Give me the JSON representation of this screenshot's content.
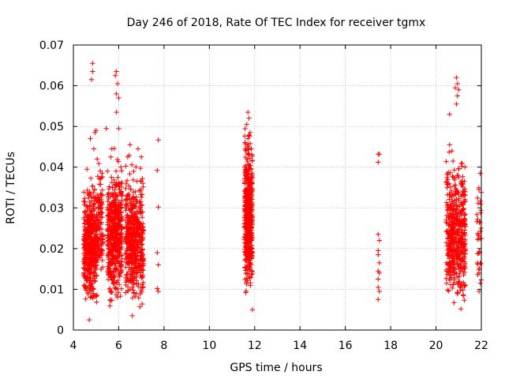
{
  "chart_data": {
    "type": "scatter",
    "title": "Day 246 of 2018, Rate Of TEC Index for receiver tgmx",
    "xlabel": "GPS time / hours",
    "ylabel": "ROTI / TECUs",
    "xlim": [
      4,
      22
    ],
    "ylim": [
      0,
      0.07
    ],
    "x_ticks": [
      4,
      6,
      8,
      10,
      12,
      14,
      16,
      18,
      20,
      22
    ],
    "y_ticks": [
      0,
      0.01,
      0.02,
      0.03,
      0.04,
      0.05,
      0.06,
      0.07
    ],
    "x_tick_labels": [
      "4",
      "6",
      "8",
      "10",
      "12",
      "14",
      "16",
      "18",
      "20",
      "22"
    ],
    "y_tick_labels": [
      "0",
      "0.01",
      "0.02",
      "0.03",
      "0.04",
      "0.05",
      "0.06",
      "0.07"
    ],
    "grid": true,
    "marker": "plus",
    "series_color": "#ff0000",
    "series": [
      {
        "name": "ROTI",
        "clusters": [
          {
            "x_range": [
              4.45,
              5.05
            ],
            "y_range": [
              0.005,
              0.04
            ],
            "density": "high"
          },
          {
            "x_range": [
              5.05,
              5.3
            ],
            "y_range": [
              0.01,
              0.045
            ],
            "density": "medium"
          },
          {
            "x_range": [
              5.5,
              6.15
            ],
            "y_range": [
              0.005,
              0.045
            ],
            "density": "high"
          },
          {
            "x_range": [
              6.3,
              7.1
            ],
            "y_range": [
              0.004,
              0.045
            ],
            "density": "high"
          },
          {
            "x_range": [
              11.55,
              11.9
            ],
            "y_range": [
              0.006,
              0.053
            ],
            "density": "high"
          },
          {
            "x_range": [
              20.45,
              21.3
            ],
            "y_range": [
              0.005,
              0.045
            ],
            "density": "high"
          },
          {
            "x_range": [
              21.8,
              22.0
            ],
            "y_range": [
              0.008,
              0.039
            ],
            "density": "low"
          }
        ],
        "points": [
          [
            4.85,
            0.0655
          ],
          [
            4.85,
            0.0635
          ],
          [
            4.8,
            0.0615
          ],
          [
            4.95,
            0.0485
          ],
          [
            5.0,
            0.049
          ],
          [
            4.75,
            0.047
          ],
          [
            4.9,
            0.0445
          ],
          [
            4.6,
            0.0395
          ],
          [
            5.05,
            0.042
          ],
          [
            4.7,
            0.0025
          ],
          [
            5.45,
            0.0495
          ],
          [
            5.9,
            0.0635
          ],
          [
            5.85,
            0.0625
          ],
          [
            5.95,
            0.0605
          ],
          [
            5.9,
            0.058
          ],
          [
            6.0,
            0.057
          ],
          [
            5.9,
            0.0535
          ],
          [
            6.0,
            0.0495
          ],
          [
            5.7,
            0.0445
          ],
          [
            5.65,
            0.0425
          ],
          [
            6.5,
            0.0455
          ],
          [
            6.85,
            0.0445
          ],
          [
            6.4,
            0.0425
          ],
          [
            7.0,
            0.0425
          ],
          [
            6.6,
            0.0035
          ],
          [
            7.75,
            0.0467
          ],
          [
            7.7,
            0.0392
          ],
          [
            7.75,
            0.0302
          ],
          [
            7.7,
            0.019
          ],
          [
            7.75,
            0.016
          ],
          [
            7.7,
            0.0102
          ],
          [
            7.75,
            0.0095
          ],
          [
            11.7,
            0.0535
          ],
          [
            11.75,
            0.052
          ],
          [
            11.65,
            0.0505
          ],
          [
            11.8,
            0.0485
          ],
          [
            11.7,
            0.047
          ],
          [
            11.85,
            0.0445
          ],
          [
            11.9,
            0.005
          ],
          [
            17.45,
            0.0432
          ],
          [
            17.5,
            0.0432
          ],
          [
            17.45,
            0.0412
          ],
          [
            17.45,
            0.0235
          ],
          [
            17.5,
            0.022
          ],
          [
            17.45,
            0.0195
          ],
          [
            17.45,
            0.0185
          ],
          [
            17.5,
            0.0165
          ],
          [
            17.45,
            0.0145
          ],
          [
            17.5,
            0.014
          ],
          [
            17.45,
            0.0125
          ],
          [
            17.45,
            0.0105
          ],
          [
            17.5,
            0.0095
          ],
          [
            17.45,
            0.0075
          ],
          [
            20.6,
            0.053
          ],
          [
            20.6,
            0.0455
          ],
          [
            20.7,
            0.044
          ],
          [
            20.9,
            0.062
          ],
          [
            20.95,
            0.0605
          ],
          [
            20.85,
            0.0595
          ],
          [
            21.0,
            0.059
          ],
          [
            20.95,
            0.0575
          ],
          [
            20.9,
            0.0555
          ],
          [
            20.75,
            0.0415
          ],
          [
            21.1,
            0.0052
          ],
          [
            21.95,
            0.0385
          ],
          [
            21.9,
            0.0345
          ],
          [
            21.95,
            0.0265
          ],
          [
            21.9,
            0.0225
          ],
          [
            22.0,
            0.0225
          ],
          [
            21.95,
            0.0165
          ],
          [
            21.9,
            0.014
          ],
          [
            21.95,
            0.0115
          ],
          [
            21.9,
            0.0095
          ]
        ]
      }
    ]
  }
}
